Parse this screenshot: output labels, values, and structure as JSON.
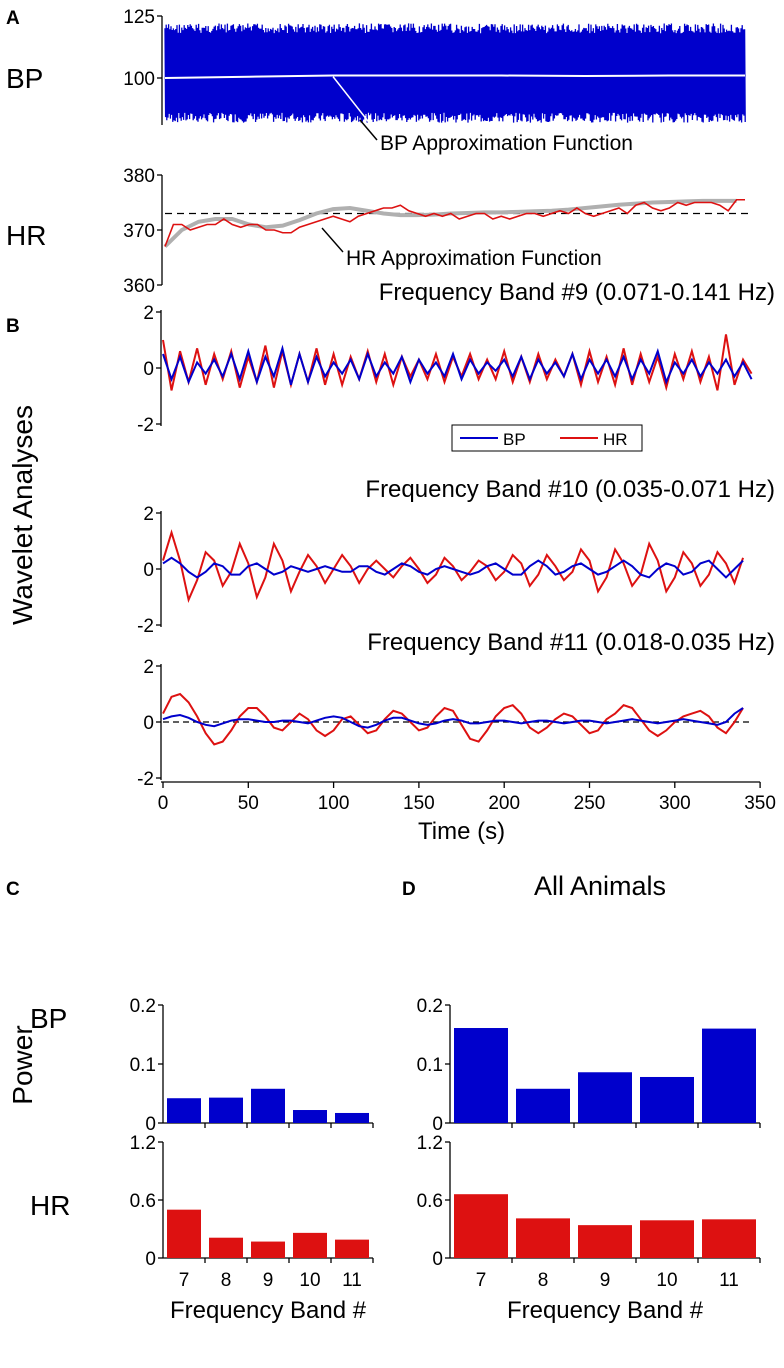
{
  "panel_labels": {
    "a": "A",
    "b": "B",
    "c": "C",
    "d": "D"
  },
  "colors": {
    "bp": "#0000cc",
    "hr": "#dd1111",
    "approx_bp": "#ffffff",
    "approx_hr": "#b0b0b0"
  },
  "chart_data": [
    {
      "id": "A-BP",
      "type": "line",
      "ylabel": "BP",
      "ylim": [
        75,
        125
      ],
      "yticks": [
        "125",
        "100"
      ],
      "xlim": [
        0,
        345
      ],
      "raw_range": [
        82,
        122
      ],
      "approx_step": 50,
      "approx": [
        100,
        100.5,
        101,
        101,
        101,
        100.8,
        101,
        101
      ],
      "annotation": "BP Approximation Function"
    },
    {
      "id": "A-HR",
      "type": "line",
      "ylabel": "HR",
      "ylim": [
        360,
        380
      ],
      "yticks": [
        "380",
        "370",
        "360"
      ],
      "xlim": [
        0,
        345
      ],
      "mean": 373,
      "step": 5,
      "values": [
        367,
        371,
        371,
        370,
        370.5,
        371,
        371,
        372,
        371,
        370.5,
        371,
        371,
        370,
        370,
        369.5,
        369.5,
        370.5,
        371,
        371.5,
        372,
        372.5,
        372,
        371.5,
        372.5,
        373,
        373.5,
        374,
        374,
        374.5,
        373.5,
        373,
        372.5,
        373,
        372.5,
        373,
        372,
        372.5,
        373,
        373,
        372,
        372.5,
        372,
        372.5,
        373,
        373,
        372.5,
        373,
        373.5,
        373,
        374,
        373,
        372.5,
        373,
        373.5,
        374,
        373,
        374.5,
        375,
        374,
        373.5,
        374,
        375,
        374.5,
        375,
        375,
        375,
        374.5,
        373.5,
        375.5,
        375.5
      ],
      "approx_step": 10,
      "approx": [
        367,
        370,
        371.5,
        372,
        372,
        371,
        370.5,
        370.8,
        371.8,
        373,
        373.8,
        374,
        373.5,
        373,
        372.7,
        372.7,
        372.8,
        373,
        373.1,
        373.2,
        373.2,
        373.3,
        373.4,
        373.5,
        373.7,
        374,
        374.3,
        374.6,
        374.8,
        375,
        375.1,
        375.2,
        375.3,
        375.3,
        375.3
      ],
      "annotation": "HR Approximation Function"
    },
    {
      "id": "B-9",
      "type": "line",
      "title": "Frequency Band #9 (0.071-0.141 Hz)",
      "ylim": [
        -2,
        2
      ],
      "yticks": [
        "2",
        "0",
        "-2"
      ],
      "step": 5,
      "series": [
        {
          "name": "BP",
          "values": [
            0.5,
            -0.4,
            0.4,
            -0.5,
            0.2,
            -0.2,
            0.3,
            -0.3,
            0.5,
            -0.4,
            0.6,
            -0.5,
            0.4,
            -0.3,
            0.7,
            -0.6,
            0.5,
            -0.5,
            0.4,
            -0.3,
            0.2,
            -0.2,
            0.3,
            -0.4,
            0.5,
            -0.3,
            0.2,
            -0.2,
            0.4,
            -0.5,
            0.3,
            -0.2,
            0.2,
            -0.3,
            0.5,
            -0.4,
            0.3,
            -0.2,
            0.2,
            -0.1,
            0.3,
            -0.3,
            0.4,
            -0.4,
            0.3,
            -0.2,
            0.2,
            -0.3,
            0.5,
            -0.4,
            0.3,
            -0.2,
            0.3,
            -0.3,
            0.4,
            -0.4,
            0.3,
            -0.2,
            0.6,
            -0.5,
            0.2,
            -0.2,
            0.3,
            -0.3,
            0.2,
            -0.2,
            0.3,
            -0.3,
            0.2,
            -0.4
          ]
        },
        {
          "name": "HR",
          "values": [
            1.0,
            -0.8,
            0.6,
            -0.5,
            0.7,
            -0.6,
            0.5,
            -0.4,
            0.6,
            -0.7,
            0.4,
            -0.5,
            0.8,
            -0.7,
            0.6,
            -0.6,
            0.5,
            -0.5,
            0.7,
            -0.6,
            0.5,
            -0.6,
            0.4,
            -0.4,
            0.6,
            -0.5,
            0.5,
            -0.6,
            0.4,
            -0.3,
            0.3,
            -0.4,
            0.5,
            -0.5,
            0.4,
            -0.3,
            0.5,
            -0.4,
            0.3,
            -0.4,
            0.6,
            -0.5,
            0.4,
            -0.5,
            0.5,
            -0.4,
            0.3,
            -0.3,
            0.5,
            -0.6,
            0.6,
            -0.5,
            0.4,
            -0.6,
            0.7,
            -0.6,
            0.5,
            -0.5,
            0.4,
            -0.7,
            0.5,
            -0.4,
            0.6,
            -0.5,
            0.4,
            -0.8,
            1.2,
            -0.6,
            0.3,
            -0.2
          ]
        }
      ],
      "legend": [
        "BP",
        "HR"
      ]
    },
    {
      "id": "B-10",
      "type": "line",
      "title": "Frequency Band #10 (0.035-0.071 Hz)",
      "ylim": [
        -2,
        2
      ],
      "yticks": [
        "2",
        "0",
        "-2"
      ],
      "step": 5,
      "series": [
        {
          "name": "BP",
          "values": [
            0.2,
            0.4,
            0.2,
            -0.1,
            -0.3,
            -0.1,
            0.2,
            0.1,
            -0.2,
            -0.2,
            0.1,
            0.2,
            0,
            -0.2,
            -0.1,
            0.1,
            0,
            -0.1,
            0,
            0.1,
            0,
            -0.1,
            -0.1,
            0.1,
            0.1,
            -0.1,
            -0.2,
            0,
            0.2,
            0.1,
            -0.1,
            -0.2,
            0,
            0.1,
            0,
            -0.1,
            -0.2,
            -0.1,
            0.1,
            0.2,
            0,
            -0.2,
            -0.2,
            0.1,
            0.3,
            0.1,
            -0.2,
            -0.1,
            0.1,
            0.2,
            0,
            -0.2,
            -0.1,
            0.1,
            0.3,
            0.1,
            -0.2,
            -0.3,
            0,
            0.2,
            0.1,
            -0.2,
            -0.1,
            0.2,
            0.3,
            0,
            -0.3,
            0,
            0.3
          ]
        },
        {
          "name": "HR",
          "values": [
            0.3,
            1.3,
            0.3,
            -1.1,
            -0.4,
            0.6,
            0.3,
            -0.6,
            -0.1,
            0.9,
            0.2,
            -1.0,
            -0.3,
            0.9,
            0.3,
            -0.8,
            -0.1,
            0.5,
            0.1,
            -0.5,
            0,
            0.5,
            0.1,
            -0.5,
            0,
            0.3,
            0,
            -0.3,
            0.1,
            0.4,
            0,
            -0.5,
            -0.2,
            0.4,
            0.1,
            -0.4,
            -0.1,
            0.3,
            0.1,
            -0.4,
            -0.1,
            0.5,
            0.2,
            -0.6,
            -0.2,
            0.5,
            0.1,
            -0.4,
            -0.1,
            0.7,
            0.3,
            -0.8,
            -0.3,
            0.7,
            0.2,
            -0.6,
            -0.2,
            0.9,
            0.3,
            -0.8,
            -0.3,
            0.6,
            0.2,
            -0.6,
            -0.2,
            0.6,
            0.2,
            -0.5,
            0.4
          ]
        }
      ]
    },
    {
      "id": "B-11",
      "type": "line",
      "title": "Frequency Band #11 (0.018-0.035 Hz)",
      "ylim": [
        -2,
        2
      ],
      "yticks": [
        "2",
        "0",
        "-2"
      ],
      "step": 5,
      "xlim": [
        0,
        350
      ],
      "xticks": [
        "0",
        "50",
        "100",
        "150",
        "200",
        "250",
        "300",
        "350"
      ],
      "xlabel": "Time (s)",
      "series": [
        {
          "name": "BP",
          "values": [
            0.1,
            0.2,
            0.25,
            0.15,
            0,
            -0.1,
            -0.15,
            -0.05,
            0.05,
            0.1,
            0.1,
            0.05,
            0,
            0,
            0.05,
            0.05,
            0,
            -0.05,
            0.05,
            0.15,
            0.2,
            0.15,
            0,
            -0.15,
            -0.2,
            -0.1,
            0.05,
            0.15,
            0.15,
            0.05,
            -0.05,
            -0.1,
            -0.05,
            0.05,
            0.1,
            0.05,
            -0.05,
            -0.05,
            0,
            0.05,
            0.05,
            0,
            -0.05,
            0,
            0.05,
            0.05,
            0,
            -0.05,
            0,
            0.05,
            0.05,
            0,
            -0.05,
            0,
            0.05,
            0.1,
            0.05,
            0,
            -0.05,
            0,
            0.05,
            0.1,
            0.05,
            0,
            -0.05,
            -0.1,
            0,
            0.3,
            0.5
          ]
        },
        {
          "name": "HR",
          "values": [
            0.3,
            0.9,
            1.0,
            0.7,
            0.2,
            -0.4,
            -0.8,
            -0.7,
            -0.3,
            0.2,
            0.5,
            0.5,
            0.2,
            -0.2,
            -0.3,
            0,
            0.3,
            0.1,
            -0.3,
            -0.5,
            -0.3,
            0.1,
            0.2,
            -0.1,
            -0.4,
            -0.3,
            0.1,
            0.4,
            0.3,
            0,
            -0.3,
            -0.2,
            0.2,
            0.5,
            0.4,
            -0.1,
            -0.6,
            -0.7,
            -0.3,
            0.2,
            0.5,
            0.6,
            0.3,
            -0.2,
            -0.4,
            -0.2,
            0.1,
            0.3,
            0.2,
            -0.1,
            -0.4,
            -0.3,
            0.1,
            0.3,
            0.6,
            0.5,
            0.1,
            -0.3,
            -0.5,
            -0.3,
            0,
            0.2,
            0.3,
            0.4,
            0.2,
            -0.2,
            -0.4,
            0,
            0.5
          ]
        }
      ]
    },
    {
      "id": "C-BP",
      "type": "bar",
      "ylabel": "BP",
      "ylim": [
        0,
        0.2
      ],
      "yticks": [
        "0.2",
        "0.1",
        "0"
      ],
      "categories": [
        "7",
        "8",
        "9",
        "10",
        "11"
      ],
      "values": [
        0.042,
        0.043,
        0.058,
        0.022,
        0.017
      ]
    },
    {
      "id": "C-HR",
      "type": "bar",
      "ylabel": "HR",
      "ylim": [
        0,
        1.2
      ],
      "yticks": [
        "1.2",
        "0.6",
        "0"
      ],
      "categories": [
        "7",
        "8",
        "9",
        "10",
        "11"
      ],
      "values": [
        0.5,
        0.21,
        0.17,
        0.26,
        0.19
      ],
      "xlabel": "Frequency Band #"
    },
    {
      "id": "D-BP",
      "type": "bar",
      "title": "All Animals",
      "ylim": [
        0,
        0.2
      ],
      "yticks": [
        "0.2",
        "0.1",
        "0"
      ],
      "categories": [
        "7",
        "8",
        "9",
        "10",
        "11"
      ],
      "values": [
        0.161,
        0.058,
        0.086,
        0.078,
        0.16
      ]
    },
    {
      "id": "D-HR",
      "type": "bar",
      "ylim": [
        0,
        1.2
      ],
      "yticks": [
        "1.2",
        "0.6",
        "0"
      ],
      "categories": [
        "7",
        "8",
        "9",
        "10",
        "11"
      ],
      "values": [
        0.66,
        0.41,
        0.34,
        0.39,
        0.4
      ],
      "xlabel": "Frequency Band #"
    }
  ],
  "side_labels": {
    "wavelet": "Wavelet Analyses",
    "power": "Power"
  }
}
